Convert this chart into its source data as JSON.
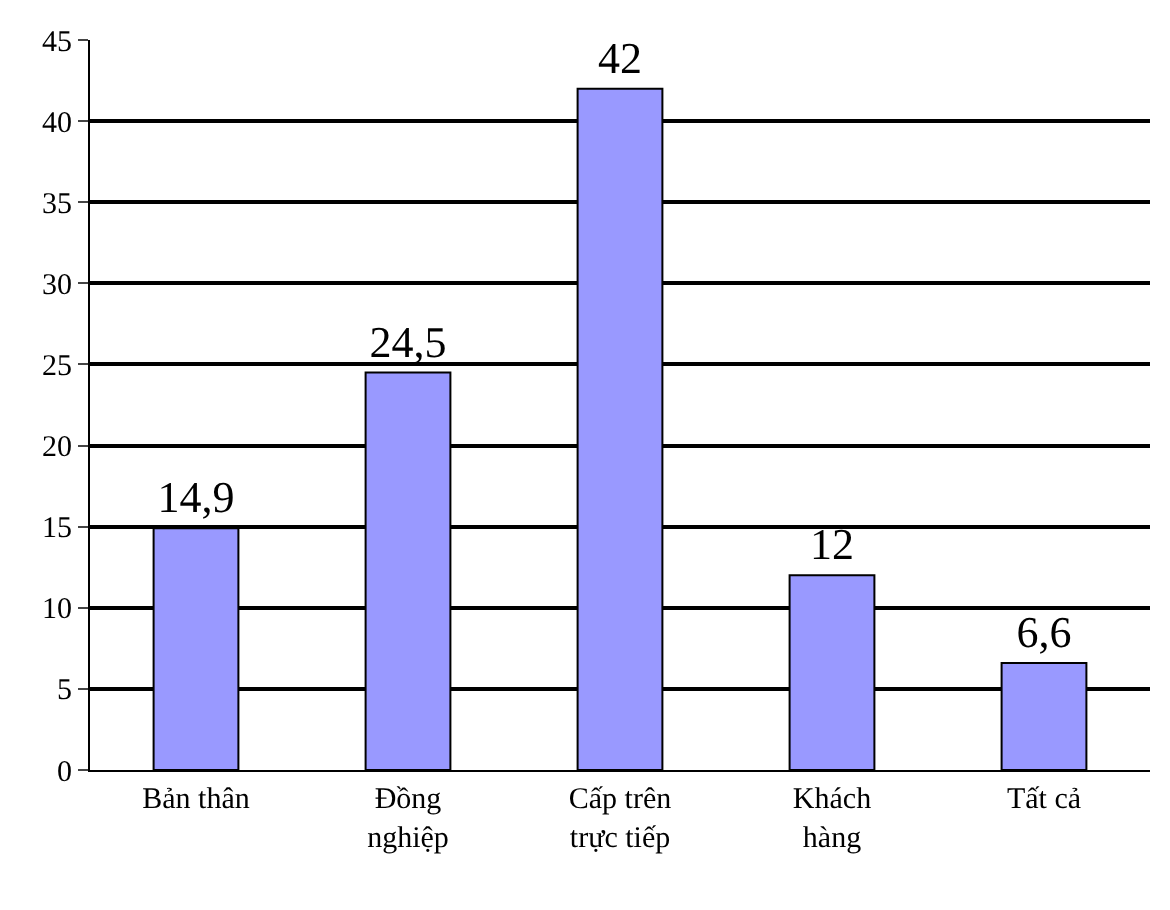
{
  "chart_data": {
    "type": "bar",
    "categories": [
      "Bản thân",
      "Đồng nghiệp",
      "Cấp trên trực tiếp",
      "Khách hàng",
      "Tất cả"
    ],
    "values": [
      14.9,
      24.5,
      42,
      12,
      6.6
    ],
    "value_labels": [
      "14,9",
      "24,5",
      "42",
      "12",
      "6,6"
    ],
    "color": "#9999ff",
    "ylim": [
      0,
      45
    ],
    "yticks": [
      0,
      5,
      10,
      15,
      20,
      25,
      30,
      35,
      40,
      45
    ],
    "grid": "y"
  }
}
